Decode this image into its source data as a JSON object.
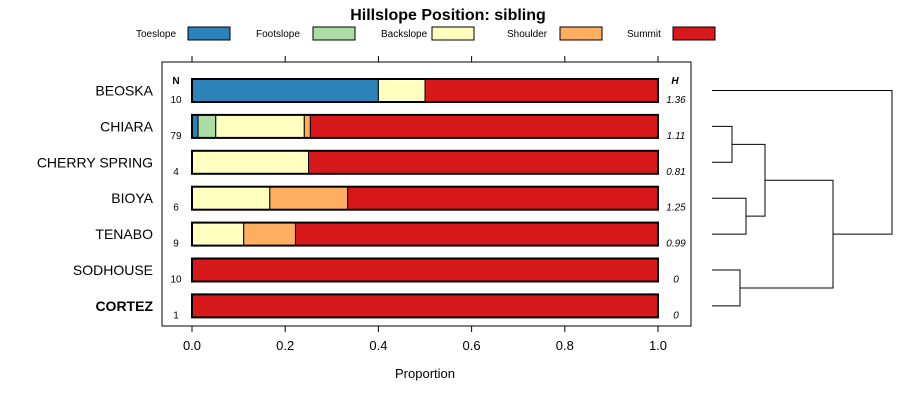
{
  "chart_data": {
    "type": "bar",
    "title": "Hillslope Position: sibling",
    "xlabel": "Proportion",
    "ylabel": "",
    "xlim": [
      0,
      1
    ],
    "xticks": [
      "0.0",
      "0.2",
      "0.4",
      "0.6",
      "0.8",
      "1.0"
    ],
    "xtick_values": [
      0,
      0.2,
      0.4,
      0.6,
      0.8,
      1.0
    ],
    "n_header": "N",
    "h_header": "H",
    "legend_position": "top",
    "legend": [
      {
        "name": "Toeslope",
        "color": "#2b83ba"
      },
      {
        "name": "Footslope",
        "color": "#abdda4"
      },
      {
        "name": "Backslope",
        "color": "#ffffbf"
      },
      {
        "name": "Shoulder",
        "color": "#fdae61"
      },
      {
        "name": "Summit",
        "color": "#d7191c"
      }
    ],
    "rows": [
      {
        "name": "BEOSKA",
        "n": "10",
        "h": "1.36",
        "bold": false,
        "values": [
          0.4,
          0.0,
          0.1,
          0.0,
          0.5
        ]
      },
      {
        "name": "CHIARA",
        "n": "79",
        "h": "1.11",
        "bold": false,
        "values": [
          0.013,
          0.038,
          0.19,
          0.013,
          0.746
        ]
      },
      {
        "name": "CHERRY SPRING",
        "n": "4",
        "h": "0.81",
        "bold": false,
        "values": [
          0.0,
          0.0,
          0.25,
          0.0,
          0.75
        ]
      },
      {
        "name": "BIOYA",
        "n": "6",
        "h": "1.25",
        "bold": false,
        "values": [
          0.0,
          0.0,
          0.167,
          0.167,
          0.666
        ]
      },
      {
        "name": "TENABO",
        "n": "9",
        "h": "0.99",
        "bold": false,
        "values": [
          0.0,
          0.0,
          0.111,
          0.111,
          0.778
        ]
      },
      {
        "name": "SODHOUSE",
        "n": "10",
        "h": "0",
        "bold": false,
        "values": [
          0.0,
          0.0,
          0.0,
          0.0,
          1.0
        ]
      },
      {
        "name": "CORTEZ",
        "n": "1",
        "h": "0",
        "bold": true,
        "values": [
          0.0,
          0.0,
          0.0,
          0.0,
          1.0
        ]
      }
    ],
    "dendrogram_merges": [
      [
        "CHERRY SPRING",
        "CHIARA"
      ],
      [
        "BIOYA",
        "TENABO"
      ],
      [
        "CHIARA+CHERRY SPRING",
        "BIOYA+TENABO"
      ],
      [
        "SODHOUSE",
        "CORTEZ"
      ],
      [
        "CHIARA..TENABO",
        "SODHOUSE+CORTEZ"
      ],
      [
        "BEOSKA",
        "ALL"
      ]
    ]
  }
}
